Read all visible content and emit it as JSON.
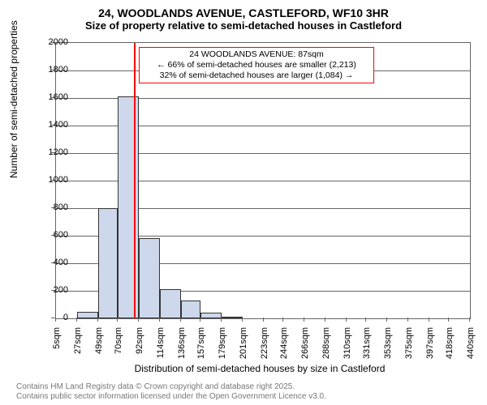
{
  "title": "24, WOODLANDS AVENUE, CASTLEFORD, WF10 3HR",
  "subtitle": "Size of property relative to semi-detached houses in Castleford",
  "ylabel": "Number of semi-detached properties",
  "xlabel": "Distribution of semi-detached houses by size in Castleford",
  "footer1": "Contains HM Land Registry data © Crown copyright and database right 2025.",
  "footer2": "Contains public sector information licensed under the Open Government Licence v3.0.",
  "chart": {
    "type": "histogram",
    "ylim": [
      0,
      2000
    ],
    "ytick_step": 200,
    "yticks": [
      0,
      200,
      400,
      600,
      800,
      1000,
      1200,
      1400,
      1600,
      1800,
      2000
    ],
    "xticks": [
      5,
      27,
      49,
      70,
      92,
      114,
      136,
      157,
      179,
      201,
      223,
      244,
      266,
      288,
      310,
      331,
      353,
      375,
      397,
      418,
      440
    ],
    "xtick_labels": [
      "5sqm",
      "27sqm",
      "49sqm",
      "70sqm",
      "92sqm",
      "114sqm",
      "136sqm",
      "157sqm",
      "179sqm",
      "201sqm",
      "223sqm",
      "244sqm",
      "266sqm",
      "288sqm",
      "310sqm",
      "331sqm",
      "353sqm",
      "375sqm",
      "397sqm",
      "418sqm",
      "440sqm"
    ],
    "xlim": [
      5,
      440
    ],
    "bars": [
      {
        "x0": 27,
        "x1": 49,
        "value": 50
      },
      {
        "x0": 49,
        "x1": 70,
        "value": 800
      },
      {
        "x0": 70,
        "x1": 92,
        "value": 1610
      },
      {
        "x0": 92,
        "x1": 114,
        "value": 580
      },
      {
        "x0": 114,
        "x1": 136,
        "value": 210
      },
      {
        "x0": 136,
        "x1": 157,
        "value": 130
      },
      {
        "x0": 157,
        "x1": 179,
        "value": 40
      },
      {
        "x0": 179,
        "x1": 201,
        "value": 10
      }
    ],
    "bar_fill": "#cdd8ec",
    "bar_border": "#333333",
    "grid_color": "#666666",
    "background_color": "#ffffff",
    "marker": {
      "x": 87,
      "color": "#ff0000"
    },
    "annotation": {
      "border_color": "#ff0000",
      "lines": [
        "24 WOODLANDS AVENUE: 87sqm",
        "← 66% of semi-detached houses are smaller (2,213)",
        "32% of semi-detached houses are larger (1,084) →"
      ]
    }
  }
}
